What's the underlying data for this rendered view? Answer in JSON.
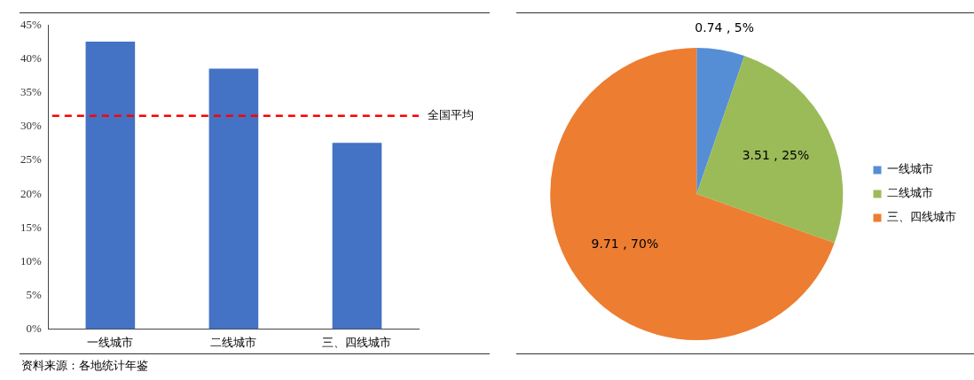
{
  "chart_data": [
    {
      "type": "bar",
      "categories": [
        "一线城市",
        "二线城市",
        "三、四线城市"
      ],
      "values": [
        42.6,
        38.6,
        27.6
      ],
      "color": "#4472c4",
      "ylim": [
        0,
        45
      ],
      "yticks": [
        {
          "value": 0,
          "label": "0%"
        },
        {
          "value": 5,
          "label": "5%"
        },
        {
          "value": 10,
          "label": "10%"
        },
        {
          "value": 15,
          "label": "15%"
        },
        {
          "value": 20,
          "label": "20%"
        },
        {
          "value": 25,
          "label": "25%"
        },
        {
          "value": 30,
          "label": "30%"
        },
        {
          "value": 35,
          "label": "35%"
        },
        {
          "value": 40,
          "label": "40%"
        },
        {
          "value": 45,
          "label": "45%"
        }
      ],
      "ref_lines": [
        {
          "axis": "y",
          "value": 31.6,
          "label": "全国平均",
          "color": "#ff0000",
          "line_style": "dashed"
        }
      ],
      "grid": false,
      "legend": false,
      "annotations": [
        "资料来源：各地统计年鉴"
      ]
    },
    {
      "type": "pie",
      "categories": [
        "一线城市",
        "二线城市",
        "三、四线城市"
      ],
      "values": [
        0.74,
        3.51,
        9.71
      ],
      "colors": [
        "#558ed5",
        "#9bbb59",
        "#ed7d31"
      ],
      "value_labels": [
        "0.74 , 5%",
        "3.51 , 25%",
        "9.71 , 70%"
      ],
      "legend": "right"
    }
  ]
}
